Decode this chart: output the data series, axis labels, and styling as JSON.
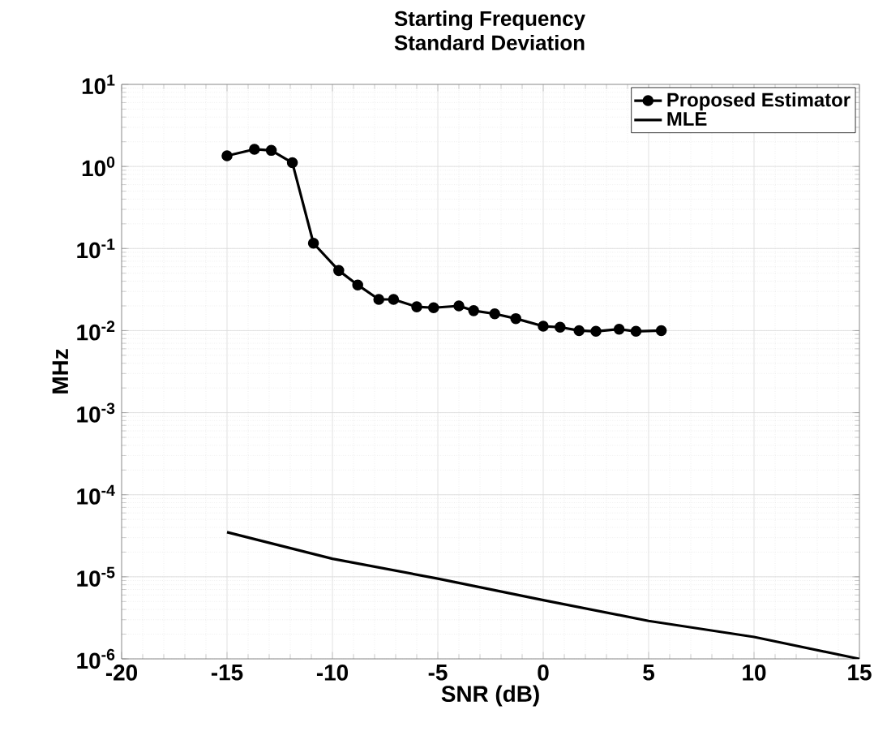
{
  "chart_data": {
    "type": "line",
    "title": "Starting Frequency",
    "subtitle": "Standard Deviation",
    "xlabel": "SNR (dB)",
    "ylabel": "MHz",
    "log": "y",
    "grid": true,
    "legend": "top right",
    "line_style": "solid",
    "xlim": [
      -20,
      15
    ],
    "xticks": [
      -20,
      -15,
      -10,
      -5,
      0,
      5,
      10,
      15
    ],
    "ylim": [
      1e-06,
      10
    ],
    "yticks": [
      {
        "value": 1e-06,
        "label": "10$^{-6}$"
      },
      {
        "value": 1e-05,
        "label": "10$^{-5}$"
      },
      {
        "value": 0.0001,
        "label": "10$^{-4}$"
      },
      {
        "value": 0.001,
        "label": "10$^{-3}$"
      },
      {
        "value": 0.01,
        "label": "10$^{-2}$"
      },
      {
        "value": 0.1,
        "label": "10$^{-1}$"
      },
      {
        "value": 1,
        "label": "10$^{0}$"
      },
      {
        "value": 10,
        "label": "10$^{1}$"
      }
    ],
    "series": [
      {
        "name": "Proposed Estimator",
        "color": "#000000",
        "marker": "circle",
        "x": [
          -15,
          -13.7,
          -12.9,
          -11.9,
          -10.9,
          -9.7,
          -8.8,
          -7.8,
          -7.1,
          -6.0,
          -5.2,
          -4.0,
          -3.3,
          -2.3,
          -1.3,
          0,
          0.8,
          1.7,
          2.5,
          3.6,
          4.4,
          5.6
        ],
        "values": [
          1.35,
          1.62,
          1.57,
          1.11,
          0.116,
          0.054,
          0.036,
          0.024,
          0.024,
          0.0195,
          0.019,
          0.02,
          0.0175,
          0.016,
          0.014,
          0.0113,
          0.011,
          0.01,
          0.0098,
          0.0104,
          0.0098,
          0.01
        ]
      },
      {
        "name": "MLE",
        "color": "#000000",
        "marker": "none",
        "x": [
          -15,
          -10,
          -5,
          0,
          5,
          10,
          15
        ],
        "values": [
          3.5e-05,
          1.66e-05,
          9.5e-06,
          5.2e-06,
          2.9e-06,
          1.85e-06,
          1e-06
        ]
      }
    ]
  }
}
